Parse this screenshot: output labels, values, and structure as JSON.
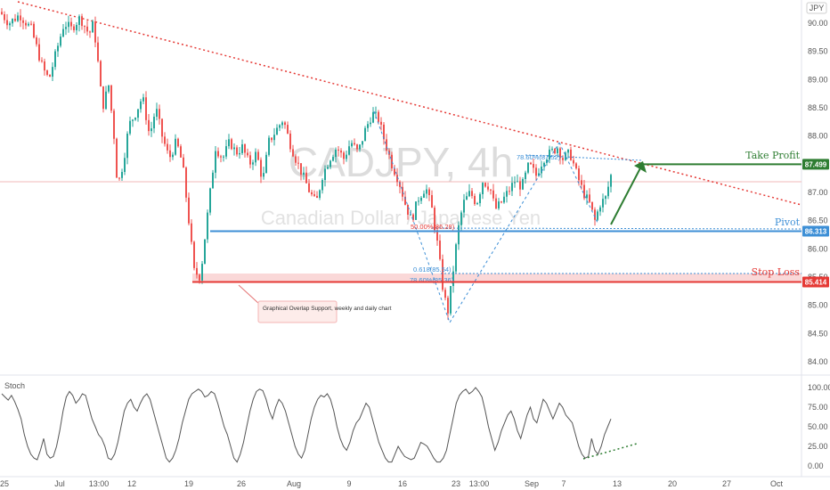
{
  "chart_data": [
    {
      "type": "candlestick",
      "symbol_watermark": "CADJPY, 4h",
      "name_watermark": "Canadian Dollar / Japanese Yen",
      "currency_label": "JPY",
      "price_axis": {
        "range": [
          83.7,
          90.5
        ],
        "ticks": [
          "90.00",
          "89.50",
          "89.00",
          "88.50",
          "88.00",
          "87.50",
          "87.00",
          "86.50",
          "86.00",
          "85.50",
          "85.00",
          "84.50",
          "84.00"
        ]
      },
      "time_axis": {
        "ticks": [
          "25",
          "Jul",
          "13:00",
          "12",
          "19",
          "26",
          "Aug",
          "9",
          "16",
          "23",
          "13:00",
          "Sep",
          "7",
          "13",
          "20",
          "27",
          "Oct"
        ]
      },
      "price_path": [
        [
          0,
          90.2
        ],
        [
          10,
          90.0
        ],
        [
          22,
          90.15
        ],
        [
          35,
          89.9
        ],
        [
          48,
          89.2
        ],
        [
          55,
          89.0
        ],
        [
          65,
          89.6
        ],
        [
          72,
          90.0
        ],
        [
          80,
          89.9
        ],
        [
          90,
          90.1
        ],
        [
          100,
          89.8
        ],
        [
          105,
          90.0
        ],
        [
          110,
          89.3
        ],
        [
          115,
          88.5
        ],
        [
          122,
          88.9
        ],
        [
          128,
          88.0
        ],
        [
          132,
          87.1
        ],
        [
          138,
          87.5
        ],
        [
          145,
          88.2
        ],
        [
          152,
          88.4
        ],
        [
          160,
          88.7
        ],
        [
          168,
          88.0
        ],
        [
          175,
          88.5
        ],
        [
          182,
          88.0
        ],
        [
          190,
          87.6
        ],
        [
          198,
          87.9
        ],
        [
          205,
          87.5
        ],
        [
          212,
          86.5
        ],
        [
          218,
          85.6
        ],
        [
          225,
          85.5
        ],
        [
          230,
          86.2
        ],
        [
          236,
          87.0
        ],
        [
          242,
          87.8
        ],
        [
          250,
          87.6
        ],
        [
          258,
          87.9
        ],
        [
          265,
          87.7
        ],
        [
          272,
          87.8
        ],
        [
          280,
          87.5
        ],
        [
          288,
          87.7
        ],
        [
          295,
          87.2
        ],
        [
          302,
          87.9
        ],
        [
          310,
          88.1
        ],
        [
          318,
          88.3
        ],
        [
          325,
          87.9
        ],
        [
          332,
          87.6
        ],
        [
          340,
          87.3
        ],
        [
          348,
          87.0
        ],
        [
          355,
          86.8
        ],
        [
          362,
          87.3
        ],
        [
          370,
          87.6
        ],
        [
          378,
          87.8
        ],
        [
          386,
          87.6
        ],
        [
          394,
          87.9
        ],
        [
          402,
          87.7
        ],
        [
          410,
          88.1
        ],
        [
          418,
          88.4
        ],
        [
          425,
          88.3
        ],
        [
          432,
          87.9
        ],
        [
          440,
          87.5
        ],
        [
          448,
          87.2
        ],
        [
          455,
          86.8
        ],
        [
          462,
          86.5
        ],
        [
          470,
          86.9
        ],
        [
          478,
          87.1
        ],
        [
          485,
          86.7
        ],
        [
          492,
          86.0
        ],
        [
          498,
          85.2
        ],
        [
          503,
          84.9
        ],
        [
          508,
          85.5
        ],
        [
          514,
          86.3
        ],
        [
          520,
          86.8
        ],
        [
          528,
          87.0
        ],
        [
          535,
          86.8
        ],
        [
          542,
          87.2
        ],
        [
          550,
          87.1
        ],
        [
          556,
          86.7
        ],
        [
          562,
          86.8
        ],
        [
          570,
          87.0
        ],
        [
          578,
          87.2
        ],
        [
          586,
          87.1
        ],
        [
          594,
          87.5
        ],
        [
          602,
          87.3
        ],
        [
          610,
          87.6
        ],
        [
          618,
          87.7
        ],
        [
          626,
          87.8
        ],
        [
          632,
          87.6
        ],
        [
          640,
          87.7
        ],
        [
          648,
          87.3
        ],
        [
          655,
          87.0
        ],
        [
          662,
          86.8
        ],
        [
          668,
          86.5
        ],
        [
          674,
          86.8
        ],
        [
          680,
          86.9
        ],
        [
          686,
          87.3
        ]
      ],
      "levels": [
        {
          "name": "Take Profit",
          "value": 87.499,
          "tag": "87.499",
          "color": "#2e7d32"
        },
        {
          "name": "Pivot",
          "value": 86.313,
          "tag": "86.313",
          "color": "#3d8fd6"
        },
        {
          "name": "Stop Loss",
          "value": 85.414,
          "tag": "85.414",
          "color": "#e53935"
        }
      ],
      "fib_labels": [
        "78.60%(87.52)",
        "50.00%(86.28)",
        "0.618(85.54)",
        "78.60%(85.36)"
      ],
      "annotation": "Graphical Overlap Support, weekly and daily chart"
    },
    {
      "type": "line",
      "indicator": "Stoch",
      "y_range": [
        0,
        100
      ],
      "ticks": [
        "100.00",
        "75.00",
        "50.00",
        "25.00",
        "0.00"
      ],
      "values": [
        92,
        88,
        84,
        90,
        82,
        72,
        60,
        40,
        25,
        15,
        10,
        8,
        20,
        35,
        15,
        10,
        12,
        25,
        45,
        70,
        88,
        95,
        90,
        80,
        85,
        92,
        90,
        75,
        60,
        50,
        40,
        35,
        25,
        10,
        8,
        15,
        30,
        50,
        70,
        80,
        85,
        75,
        70,
        80,
        88,
        92,
        85,
        70,
        55,
        40,
        25,
        10,
        5,
        10,
        20,
        35,
        55,
        70,
        85,
        92,
        95,
        98,
        95,
        88,
        90,
        95,
        92,
        80,
        65,
        50,
        40,
        25,
        10,
        5,
        15,
        30,
        50,
        70,
        85,
        95,
        98,
        96,
        85,
        70,
        60,
        75,
        85,
        80,
        70,
        55,
        40,
        25,
        15,
        10,
        20,
        40,
        60,
        75,
        85,
        90,
        88,
        92,
        85,
        70,
        50,
        35,
        25,
        20,
        30,
        45,
        55,
        60,
        70,
        80,
        75,
        60,
        45,
        30,
        20,
        10,
        5,
        5,
        15,
        25,
        18,
        12,
        10,
        8,
        10,
        20,
        30,
        28,
        25,
        18,
        10,
        5,
        5,
        10,
        20,
        40,
        60,
        80,
        90,
        95,
        98,
        92,
        95,
        100,
        95,
        88,
        70,
        50,
        35,
        20,
        30,
        45,
        55,
        65,
        70,
        60,
        45,
        35,
        50,
        65,
        75,
        60,
        55,
        70,
        85,
        80,
        70,
        60,
        70,
        80,
        75,
        65,
        60,
        55,
        40,
        25,
        15,
        10,
        12,
        35,
        20,
        15,
        25,
        40,
        50,
        60
      ]
    }
  ]
}
